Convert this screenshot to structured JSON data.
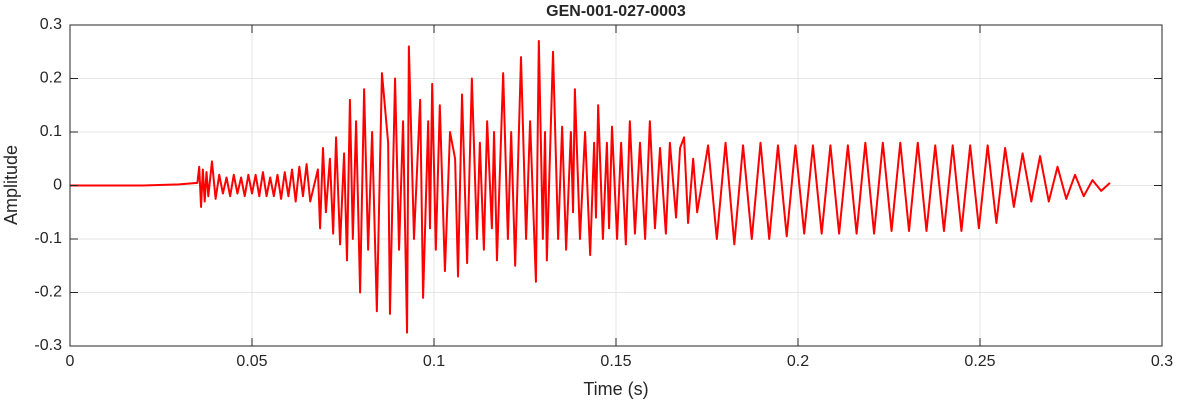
{
  "chart_data": {
    "type": "line",
    "title": "GEN-001-027-0003",
    "x_label": "Time (s)",
    "y_label": "Amplitude",
    "xlim": [
      0,
      0.3
    ],
    "ylim": [
      -0.3,
      0.3
    ],
    "xticks": [
      0,
      0.05,
      0.1,
      0.15,
      0.2,
      0.25,
      0.3
    ],
    "yticks": [
      -0.3,
      -0.2,
      -0.1,
      0,
      0.1,
      0.2,
      0.3
    ],
    "grid": true,
    "series": [
      {
        "name": "GEN-001-027-0003",
        "color": "#ff0000",
        "x": [
          0,
          0.01,
          0.02,
          0.03,
          0.035,
          0.0355,
          0.036,
          0.0365,
          0.037,
          0.0375,
          0.038,
          0.039,
          0.04,
          0.041,
          0.042,
          0.043,
          0.044,
          0.045,
          0.046,
          0.047,
          0.048,
          0.049,
          0.05,
          0.051,
          0.052,
          0.053,
          0.054,
          0.055,
          0.056,
          0.057,
          0.058,
          0.059,
          0.06,
          0.061,
          0.062,
          0.063,
          0.064,
          0.065,
          0.066,
          0.0681,
          0.0687,
          0.0695,
          0.0703,
          0.0714,
          0.0723,
          0.0731,
          0.0742,
          0.0753,
          0.0761,
          0.0769,
          0.0777,
          0.0786,
          0.0797,
          0.0808,
          0.0819,
          0.083,
          0.0843,
          0.0857,
          0.0874,
          0.0879,
          0.0893,
          0.0904,
          0.0915,
          0.0926,
          0.0931,
          0.0945,
          0.0962,
          0.097,
          0.0984,
          0.0989,
          0.0995,
          0.1005,
          0.1016,
          0.103,
          0.1044,
          0.1058,
          0.1066,
          0.1077,
          0.1091,
          0.1104,
          0.1118,
          0.1126,
          0.1137,
          0.1146,
          0.1159,
          0.1165,
          0.1173,
          0.119,
          0.1203,
          0.1212,
          0.1223,
          0.1239,
          0.1253,
          0.1264,
          0.128,
          0.1288,
          0.1299,
          0.1305,
          0.131,
          0.1327,
          0.1341,
          0.1352,
          0.1363,
          0.1376,
          0.1382,
          0.1387,
          0.1401,
          0.1415,
          0.1429,
          0.144,
          0.1445,
          0.1451,
          0.1464,
          0.1475,
          0.1481,
          0.1489,
          0.1503,
          0.1514,
          0.1527,
          0.1538,
          0.1552,
          0.1566,
          0.158,
          0.1593,
          0.1607,
          0.1621,
          0.1637,
          0.1648,
          0.1665,
          0.1676,
          0.1687,
          0.1698,
          0.1712,
          0.1723,
          0.1753,
          0.1777,
          0.1801,
          0.1825,
          0.1849,
          0.1873,
          0.1897,
          0.1921,
          0.1945,
          0.1969,
          0.1993,
          0.2017,
          0.2041,
          0.2065,
          0.2089,
          0.2113,
          0.2137,
          0.2161,
          0.2185,
          0.2209,
          0.2233,
          0.2257,
          0.2281,
          0.2305,
          0.2329,
          0.2353,
          0.2377,
          0.2401,
          0.2425,
          0.2449,
          0.2473,
          0.2497,
          0.2521,
          0.2545,
          0.2569,
          0.2593,
          0.2617,
          0.2641,
          0.2665,
          0.2689,
          0.2713,
          0.2737,
          0.2761,
          0.2785,
          0.2809,
          0.2833,
          0.2857
        ],
        "values": [
          0,
          0,
          0,
          0.002,
          0.005,
          0.035,
          -0.04,
          0.03,
          -0.03,
          0.025,
          -0.02,
          0.045,
          -0.025,
          0.02,
          -0.015,
          0.015,
          -0.02,
          0.02,
          -0.015,
          0.015,
          -0.02,
          0.02,
          -0.015,
          0.02,
          -0.02,
          0.025,
          -0.02,
          0.015,
          -0.02,
          0.02,
          -0.025,
          0.025,
          -0.02,
          0.03,
          -0.03,
          0.035,
          -0.02,
          0.04,
          -0.03,
          0.03,
          -0.08,
          0.07,
          -0.05,
          0.05,
          -0.09,
          0.09,
          -0.11,
          0.06,
          -0.14,
          0.16,
          -0.1,
          0.12,
          -0.2,
          0.18,
          -0.12,
          0.1,
          -0.235,
          0.21,
          0.08,
          -0.24,
          0.2,
          -0.12,
          0.12,
          -0.275,
          0.26,
          -0.1,
          0.16,
          -0.21,
          0.12,
          -0.08,
          0.19,
          -0.12,
          0.15,
          -0.16,
          0.1,
          0.05,
          -0.17,
          0.17,
          -0.145,
          0.2,
          -0.1,
          0.08,
          -0.12,
          0.12,
          -0.08,
          0.1,
          -0.14,
          0.21,
          -0.1,
          0.1,
          -0.15,
          0.24,
          -0.1,
          0.12,
          -0.18,
          0.27,
          -0.1,
          0.1,
          -0.14,
          0.25,
          -0.1,
          0.11,
          -0.12,
          0.1,
          -0.05,
          0.18,
          -0.1,
          0.1,
          -0.13,
          0.08,
          -0.06,
          0.15,
          -0.1,
          0.08,
          -0.08,
          0.11,
          -0.1,
          0.08,
          -0.11,
          0.12,
          -0.09,
          0.08,
          -0.1,
          0.12,
          -0.08,
          0.07,
          -0.09,
          0.08,
          -0.06,
          0.07,
          0.09,
          -0.07,
          0.05,
          -0.05,
          0.075,
          -0.1,
          0.08,
          -0.11,
          0.075,
          -0.1,
          0.08,
          -0.1,
          0.075,
          -0.095,
          0.075,
          -0.09,
          0.075,
          -0.09,
          0.075,
          -0.09,
          0.075,
          -0.09,
          0.08,
          -0.09,
          0.08,
          -0.085,
          0.08,
          -0.085,
          0.08,
          -0.085,
          0.075,
          -0.085,
          0.075,
          -0.085,
          0.075,
          -0.08,
          0.075,
          -0.07,
          0.07,
          -0.04,
          0.06,
          -0.03,
          0.055,
          -0.03,
          0.035,
          -0.025,
          0.02,
          -0.02,
          0.01,
          -0.01,
          0.005
        ]
      }
    ]
  }
}
